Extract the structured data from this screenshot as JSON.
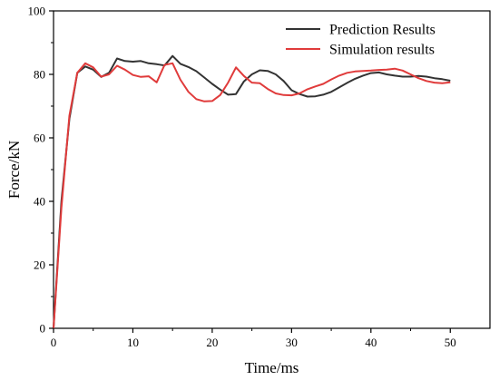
{
  "chart_data": {
    "type": "line",
    "title": "",
    "xlabel": "Time/ms",
    "ylabel": "Force/kN",
    "xlim": [
      0,
      55
    ],
    "ylim": [
      0,
      100
    ],
    "xticks": [
      0,
      10,
      20,
      30,
      40,
      50
    ],
    "yticks": [
      0,
      20,
      40,
      60,
      80,
      100
    ],
    "grid": false,
    "legend_position": "top-right",
    "series": [
      {
        "name": "Prediction Results",
        "color": "#333333",
        "x": [
          0,
          1,
          2,
          3,
          4,
          5,
          6,
          7,
          8,
          9,
          10,
          11,
          12,
          13,
          14,
          15,
          16,
          17,
          18,
          19,
          20,
          21,
          22,
          23,
          24,
          25,
          26,
          27,
          28,
          29,
          30,
          31,
          32,
          33,
          34,
          35,
          36,
          37,
          38,
          39,
          40,
          41,
          42,
          43,
          44,
          45,
          46,
          47,
          48,
          49,
          50
        ],
        "y": [
          0,
          40,
          66,
          80.5,
          82.5,
          81.5,
          79.2,
          80.5,
          85,
          84.2,
          84,
          84.2,
          83.5,
          83.2,
          82.8,
          85.8,
          83.3,
          82.3,
          81,
          79,
          77,
          75.2,
          73.6,
          73.8,
          77.8,
          80,
          81.3,
          81.1,
          80,
          77.9,
          75,
          73.8,
          73,
          73.1,
          73.6,
          74.5,
          75.9,
          77.3,
          78.6,
          79.6,
          80.4,
          80.6,
          80,
          79.6,
          79.3,
          79.3,
          79.5,
          79.3,
          78.8,
          78.5,
          78
        ]
      },
      {
        "name": "Simulation results",
        "color": "#e03b3b",
        "x": [
          0,
          1,
          2,
          3,
          4,
          5,
          6,
          7,
          8,
          9,
          10,
          11,
          12,
          13,
          14,
          15,
          16,
          17,
          18,
          19,
          20,
          21,
          22,
          23,
          24,
          25,
          26,
          27,
          28,
          29,
          30,
          31,
          32,
          33,
          34,
          35,
          36,
          37,
          38,
          39,
          40,
          41,
          42,
          43,
          44,
          45,
          46,
          47,
          48,
          49,
          50
        ],
        "y": [
          0,
          38,
          67,
          80.5,
          83.5,
          82.2,
          79.3,
          80,
          82.7,
          81.5,
          79.8,
          79.2,
          79.4,
          77.5,
          83,
          83.5,
          78.3,
          74.5,
          72.2,
          71.5,
          71.6,
          73.5,
          77.4,
          82.2,
          79.5,
          77.4,
          77.2,
          75.4,
          74,
          73.5,
          73.4,
          74,
          75.3,
          76.2,
          77,
          78.4,
          79.6,
          80.5,
          80.9,
          81.1,
          81.2,
          81.4,
          81.5,
          81.8,
          81.2,
          80,
          78.8,
          77.9,
          77.4,
          77.2,
          77.5
        ]
      }
    ]
  }
}
